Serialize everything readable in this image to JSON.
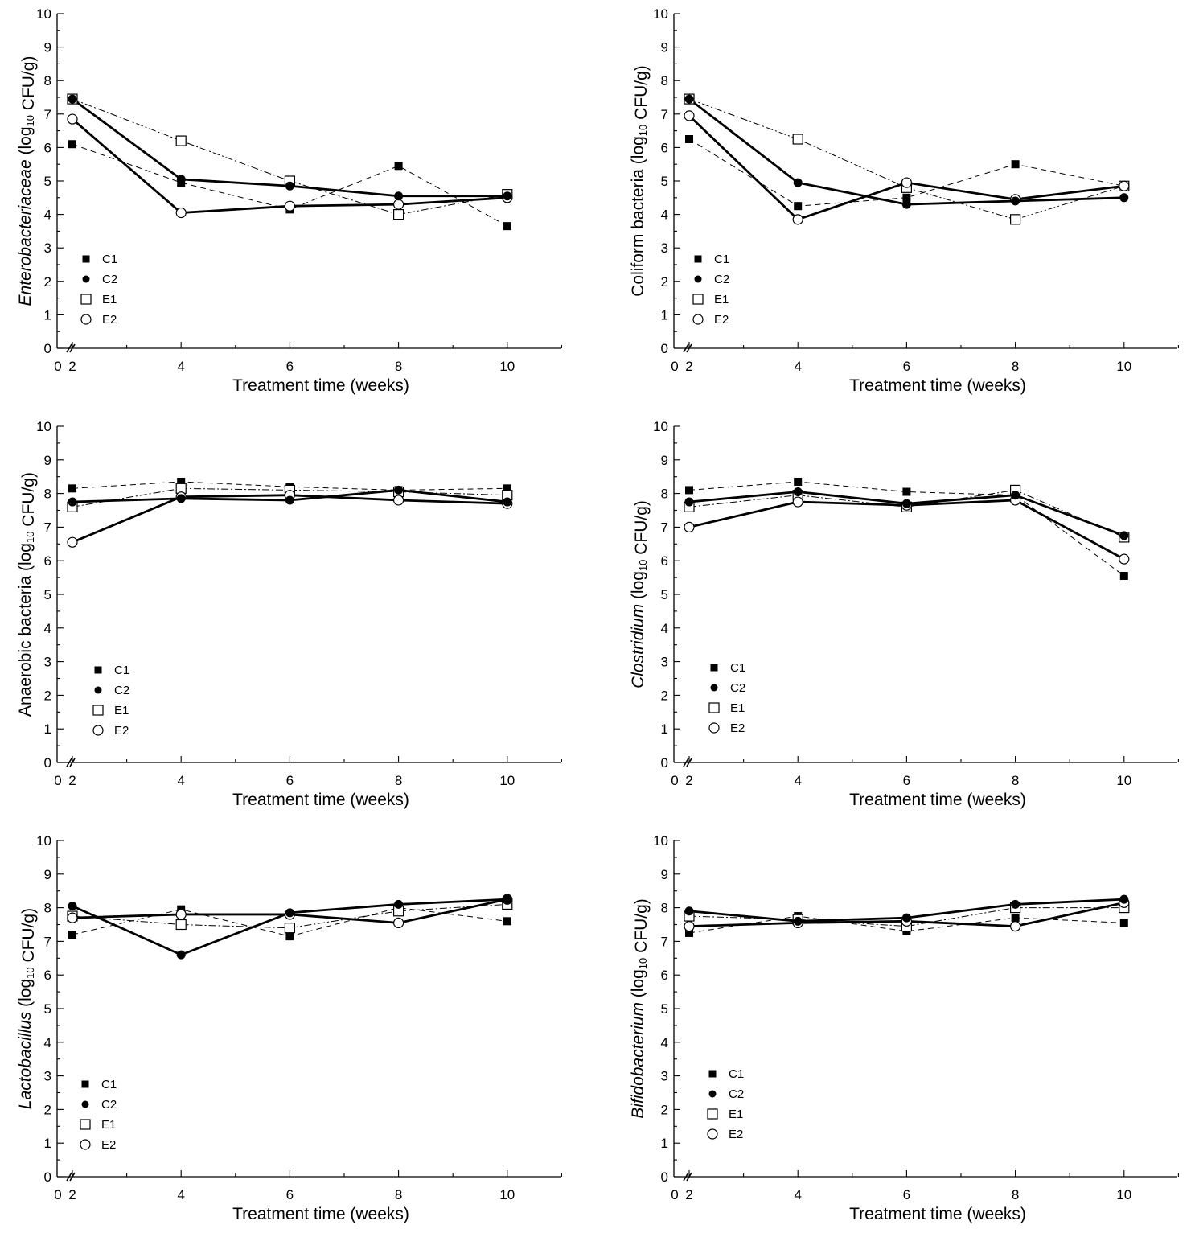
{
  "chart_data": [
    {
      "type": "line",
      "ylabel_parts": [
        {
          "text": "Enterobacteriaceae",
          "style": "italic"
        },
        {
          "text": " (log",
          "style": "normal"
        },
        {
          "text": "10",
          "style": "sub"
        },
        {
          "text": " CFU/g)",
          "style": "normal"
        }
      ],
      "xlabel": "Treatment time (weeks)",
      "x": [
        2,
        4,
        6,
        8,
        10
      ],
      "xticks": [
        2,
        4,
        6,
        8,
        10
      ],
      "origin_label": "0",
      "ylim": [
        0,
        10
      ],
      "yticks": [
        0,
        1,
        2,
        3,
        4,
        5,
        6,
        7,
        8,
        9,
        10
      ],
      "legend": [
        "C1",
        "C2",
        "E1",
        "E2"
      ],
      "legend_position": "lower-left",
      "series": [
        {
          "name": "C1",
          "marker": "filled-square",
          "line": "dashed",
          "values": [
            6.1,
            4.95,
            4.15,
            5.45,
            3.65
          ]
        },
        {
          "name": "C2",
          "marker": "filled-circle",
          "line": "solid-bold",
          "values": [
            7.45,
            5.05,
            4.85,
            4.55,
            4.55
          ]
        },
        {
          "name": "E1",
          "marker": "open-square",
          "line": "dash-dot",
          "values": [
            7.45,
            6.2,
            5.0,
            4.0,
            4.6
          ]
        },
        {
          "name": "E2",
          "marker": "open-circle",
          "line": "solid-bold",
          "values": [
            6.85,
            4.05,
            4.25,
            4.3,
            4.5
          ]
        }
      ]
    },
    {
      "type": "line",
      "ylabel_parts": [
        {
          "text": "Coliform bacteria (log",
          "style": "normal"
        },
        {
          "text": "10",
          "style": "sub"
        },
        {
          "text": " CFU/g)",
          "style": "normal"
        }
      ],
      "xlabel": "Treatment time (weeks)",
      "x": [
        2,
        4,
        6,
        8,
        10
      ],
      "xticks": [
        2,
        4,
        6,
        8,
        10
      ],
      "origin_label": "0",
      "ylim": [
        0,
        10
      ],
      "yticks": [
        0,
        1,
        2,
        3,
        4,
        5,
        6,
        7,
        8,
        9,
        10
      ],
      "legend": [
        "C1",
        "C2",
        "E1",
        "E2"
      ],
      "legend_position": "lower-left",
      "series": [
        {
          "name": "C1",
          "marker": "filled-square",
          "line": "dashed",
          "values": [
            6.25,
            4.25,
            4.5,
            5.5,
            4.85
          ]
        },
        {
          "name": "C2",
          "marker": "filled-circle",
          "line": "solid-bold",
          "values": [
            7.45,
            4.95,
            4.3,
            4.4,
            4.5
          ]
        },
        {
          "name": "E1",
          "marker": "open-square",
          "line": "dash-dot",
          "values": [
            7.45,
            6.25,
            4.8,
            3.85,
            4.85
          ]
        },
        {
          "name": "E2",
          "marker": "open-circle",
          "line": "solid-bold",
          "values": [
            6.95,
            3.85,
            4.95,
            4.45,
            4.85
          ]
        }
      ]
    },
    {
      "type": "line",
      "ylabel_parts": [
        {
          "text": "Anaerobic bacteria (log",
          "style": "normal"
        },
        {
          "text": "10",
          "style": "sub"
        },
        {
          "text": " CFU/g)",
          "style": "normal"
        }
      ],
      "xlabel": "Treatment time (weeks)",
      "x": [
        2,
        4,
        6,
        8,
        10
      ],
      "xticks": [
        2,
        4,
        6,
        8,
        10
      ],
      "origin_label": "0",
      "ylim": [
        0,
        10
      ],
      "yticks": [
        0,
        1,
        2,
        3,
        4,
        5,
        6,
        7,
        8,
        9,
        10
      ],
      "legend": [
        "C1",
        "C2",
        "E1",
        "E2"
      ],
      "legend_position": "lower-left",
      "series": [
        {
          "name": "C1",
          "marker": "filled-square",
          "line": "dashed",
          "values": [
            8.15,
            8.35,
            8.2,
            8.1,
            8.15
          ]
        },
        {
          "name": "C2",
          "marker": "filled-circle",
          "line": "solid-bold",
          "values": [
            7.75,
            7.85,
            7.8,
            8.1,
            7.75
          ]
        },
        {
          "name": "E1",
          "marker": "open-square",
          "line": "dash-dot",
          "values": [
            7.6,
            8.15,
            8.1,
            8.05,
            7.95
          ]
        },
        {
          "name": "E2",
          "marker": "open-circle",
          "line": "solid-bold",
          "values": [
            6.55,
            7.9,
            7.95,
            7.8,
            7.7
          ]
        }
      ]
    },
    {
      "type": "line",
      "ylabel_parts": [
        {
          "text": "Clostridium",
          "style": "italic"
        },
        {
          "text": " (log",
          "style": "normal"
        },
        {
          "text": "10",
          "style": "sub"
        },
        {
          "text": " CFU/g)",
          "style": "normal"
        }
      ],
      "xlabel": "Treatment time (weeks)",
      "x": [
        2,
        4,
        6,
        8,
        10
      ],
      "xticks": [
        2,
        4,
        6,
        8,
        10
      ],
      "origin_label": "0",
      "ylim": [
        0,
        10
      ],
      "yticks": [
        0,
        1,
        2,
        3,
        4,
        5,
        6,
        7,
        8,
        9,
        10
      ],
      "legend": [
        "C1",
        "C2",
        "E1",
        "E2"
      ],
      "legend_position": "lower-left",
      "series": [
        {
          "name": "C1",
          "marker": "filled-square",
          "line": "dashed",
          "values": [
            8.1,
            8.35,
            8.05,
            7.95,
            5.55
          ]
        },
        {
          "name": "C2",
          "marker": "filled-circle",
          "line": "solid-bold",
          "values": [
            7.75,
            8.05,
            7.7,
            7.95,
            6.75
          ]
        },
        {
          "name": "E1",
          "marker": "open-square",
          "line": "dash-dot",
          "values": [
            7.6,
            7.95,
            7.6,
            8.1,
            6.7
          ]
        },
        {
          "name": "E2",
          "marker": "open-circle",
          "line": "solid-bold",
          "values": [
            7.0,
            7.75,
            7.65,
            7.8,
            6.05
          ]
        }
      ]
    },
    {
      "type": "line",
      "ylabel_parts": [
        {
          "text": "Lactobacillus",
          "style": "italic"
        },
        {
          "text": " (log",
          "style": "normal"
        },
        {
          "text": "10",
          "style": "sub"
        },
        {
          "text": " CFU/g)",
          "style": "normal"
        }
      ],
      "xlabel": "Treatment time (weeks)",
      "x": [
        2,
        4,
        6,
        8,
        10
      ],
      "xticks": [
        2,
        4,
        6,
        8,
        10
      ],
      "origin_label": "0",
      "ylim": [
        0,
        10
      ],
      "yticks": [
        0,
        1,
        2,
        3,
        4,
        5,
        6,
        7,
        8,
        9,
        10
      ],
      "legend": [
        "C1",
        "C2",
        "E1",
        "E2"
      ],
      "legend_position": "lower-left",
      "series": [
        {
          "name": "C1",
          "marker": "filled-square",
          "line": "dashed",
          "values": [
            7.2,
            7.95,
            7.15,
            8.0,
            7.6
          ]
        },
        {
          "name": "C2",
          "marker": "filled-circle",
          "line": "solid-bold",
          "values": [
            8.05,
            6.6,
            7.85,
            8.1,
            8.25
          ]
        },
        {
          "name": "E1",
          "marker": "open-square",
          "line": "dash-dot",
          "values": [
            7.75,
            7.5,
            7.4,
            7.9,
            8.1
          ]
        },
        {
          "name": "E2",
          "marker": "open-circle",
          "line": "solid-bold",
          "values": [
            7.7,
            7.8,
            7.8,
            7.55,
            8.25
          ]
        }
      ]
    },
    {
      "type": "line",
      "ylabel_parts": [
        {
          "text": "Bifidobacterium",
          "style": "italic"
        },
        {
          "text": "  (log",
          "style": "normal"
        },
        {
          "text": "10",
          "style": "sub"
        },
        {
          "text": " CFU/g)",
          "style": "normal"
        }
      ],
      "xlabel": "Treatment time (weeks)",
      "x": [
        2,
        4,
        6,
        8,
        10
      ],
      "xticks": [
        2,
        4,
        6,
        8,
        10
      ],
      "origin_label": "0",
      "ylim": [
        0,
        10
      ],
      "yticks": [
        0,
        1,
        2,
        3,
        4,
        5,
        6,
        7,
        8,
        9,
        10
      ],
      "legend": [
        "C1",
        "C2",
        "E1",
        "E2"
      ],
      "legend_position": "lower-left",
      "series": [
        {
          "name": "C1",
          "marker": "filled-square",
          "line": "dashed",
          "values": [
            7.25,
            7.75,
            7.3,
            7.7,
            7.55
          ]
        },
        {
          "name": "C2",
          "marker": "filled-circle",
          "line": "solid-bold",
          "values": [
            7.9,
            7.6,
            7.7,
            8.1,
            8.25
          ]
        },
        {
          "name": "E1",
          "marker": "open-square",
          "line": "dash-dot",
          "values": [
            7.75,
            7.65,
            7.45,
            8.0,
            8.0
          ]
        },
        {
          "name": "E2",
          "marker": "open-circle",
          "line": "solid-bold",
          "values": [
            7.45,
            7.55,
            7.6,
            7.45,
            8.15
          ]
        }
      ]
    }
  ]
}
